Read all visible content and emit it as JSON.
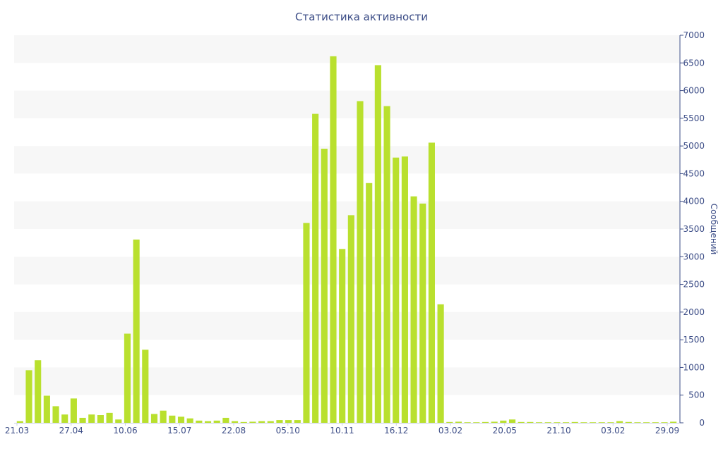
{
  "chart_data": {
    "type": "bar",
    "title": "Статистика активности",
    "ylabel": "Сообщений",
    "y_axis_side": "right",
    "ylim": [
      0,
      7000
    ],
    "y_ticks": [
      0,
      500,
      1000,
      1500,
      2000,
      2500,
      3000,
      3500,
      4000,
      4500,
      5000,
      5500,
      6000,
      6500,
      7000
    ],
    "x_tick_labels": [
      "21.03",
      "27.04",
      "10.06",
      "15.07",
      "22.08",
      "05.10",
      "10.11",
      "16.12",
      "03.02",
      "20.05",
      "21.10",
      "03.02",
      "29.09"
    ],
    "grid": "alternating horizontal bands",
    "colors": {
      "bar": "#b9e02e",
      "band": "#f7f7f7",
      "axis": "#3b4c86",
      "text": "#3b4c86"
    },
    "values": [
      30,
      950,
      1130,
      490,
      300,
      150,
      440,
      90,
      150,
      140,
      180,
      60,
      1610,
      3310,
      1320,
      160,
      220,
      130,
      110,
      80,
      40,
      30,
      40,
      90,
      30,
      15,
      20,
      30,
      30,
      50,
      50,
      50,
      3610,
      5580,
      4950,
      6620,
      3140,
      3750,
      5810,
      4330,
      6460,
      5720,
      4790,
      4810,
      4090,
      3960,
      5060,
      2140,
      15,
      20,
      10,
      10,
      15,
      20,
      40,
      60,
      15,
      15,
      10,
      10,
      10,
      10,
      15,
      10,
      10,
      10,
      10,
      30,
      15,
      10,
      10,
      10,
      10,
      20
    ]
  }
}
